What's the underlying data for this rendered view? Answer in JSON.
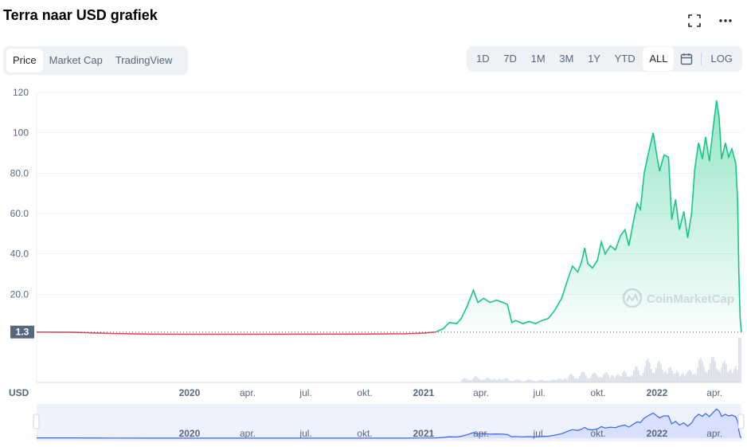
{
  "header": {
    "title": "Terra naar USD grafiek"
  },
  "icons": {
    "fullscreen": "fullscreen-icon",
    "more": "more-horizontal-icon",
    "calendar": "calendar-icon"
  },
  "type_tabs": [
    {
      "label": "Price",
      "active": true
    },
    {
      "label": "Market Cap",
      "active": false
    },
    {
      "label": "TradingView",
      "active": false
    }
  ],
  "range_tabs": [
    {
      "label": "1D",
      "active": false
    },
    {
      "label": "7D",
      "active": false
    },
    {
      "label": "1M",
      "active": false
    },
    {
      "label": "3M",
      "active": false
    },
    {
      "label": "1Y",
      "active": false
    },
    {
      "label": "YTD",
      "active": false
    },
    {
      "label": "ALL",
      "active": true
    }
  ],
  "log_label": "LOG",
  "currency_label": "USD",
  "watermark": "CoinMarketCap",
  "colors": {
    "up": "#16c784",
    "down": "#ea3943",
    "volume": "#cfd6e4",
    "nav_line": "#3861fb"
  },
  "chart_data": {
    "type": "area",
    "y_ticks": [
      "120",
      "100",
      "80.0",
      "60.0",
      "40.0",
      "20.0"
    ],
    "ylim": [
      0,
      120
    ],
    "current_price": 1.3,
    "current_price_label": "1.3",
    "x_ticks": [
      "2020",
      "apr.",
      "jul.",
      "okt.",
      "2021",
      "apr.",
      "jul.",
      "okt.",
      "2022",
      "apr."
    ],
    "x_tick_dates": [
      "2020-01-01",
      "2020-04-01",
      "2020-07-01",
      "2020-10-01",
      "2021-01-01",
      "2021-04-01",
      "2021-07-01",
      "2021-10-01",
      "2022-01-01",
      "2022-04-01"
    ],
    "x_range": [
      "2019-05-07",
      "2022-05-13"
    ],
    "grid": true,
    "series": [
      {
        "points": [
          [
            "2019-05-07",
            1.3
          ],
          [
            "2019-07-01",
            1.2
          ],
          [
            "2019-09-01",
            0.6
          ],
          [
            "2019-11-01",
            0.25
          ],
          [
            "2020-01-01",
            0.2
          ],
          [
            "2020-04-01",
            0.2
          ],
          [
            "2020-07-01",
            0.25
          ],
          [
            "2020-10-01",
            0.3
          ],
          [
            "2020-12-01",
            0.45
          ],
          [
            "2021-01-01",
            0.8
          ],
          [
            "2021-01-20",
            1.3
          ],
          [
            "2021-02-01",
            3
          ],
          [
            "2021-02-10",
            6
          ],
          [
            "2021-02-22",
            5.5
          ],
          [
            "2021-03-01",
            8
          ],
          [
            "2021-03-10",
            14
          ],
          [
            "2021-03-20",
            22
          ],
          [
            "2021-03-27",
            16
          ],
          [
            "2021-04-05",
            18
          ],
          [
            "2021-04-15",
            16
          ],
          [
            "2021-04-25",
            17
          ],
          [
            "2021-05-05",
            16
          ],
          [
            "2021-05-12",
            15
          ],
          [
            "2021-05-19",
            6
          ],
          [
            "2021-05-25",
            7
          ],
          [
            "2021-06-05",
            5.5
          ],
          [
            "2021-06-15",
            6.5
          ],
          [
            "2021-06-25",
            5.5
          ],
          [
            "2021-07-05",
            7
          ],
          [
            "2021-07-15",
            8
          ],
          [
            "2021-07-25",
            12
          ],
          [
            "2021-08-05",
            18
          ],
          [
            "2021-08-15",
            28
          ],
          [
            "2021-08-22",
            34
          ],
          [
            "2021-08-30",
            31
          ],
          [
            "2021-09-05",
            36
          ],
          [
            "2021-09-10",
            43
          ],
          [
            "2021-09-15",
            35
          ],
          [
            "2021-09-22",
            33
          ],
          [
            "2021-09-30",
            37
          ],
          [
            "2021-10-06",
            46
          ],
          [
            "2021-10-12",
            40
          ],
          [
            "2021-10-20",
            44
          ],
          [
            "2021-10-28",
            42
          ],
          [
            "2021-11-05",
            49
          ],
          [
            "2021-11-12",
            52
          ],
          [
            "2021-11-18",
            44
          ],
          [
            "2021-11-25",
            56
          ],
          [
            "2021-12-01",
            65
          ],
          [
            "2021-12-06",
            62
          ],
          [
            "2021-12-12",
            80
          ],
          [
            "2021-12-20",
            92
          ],
          [
            "2021-12-26",
            100
          ],
          [
            "2021-12-31",
            90
          ],
          [
            "2022-01-05",
            81
          ],
          [
            "2022-01-12",
            89
          ],
          [
            "2022-01-19",
            88
          ],
          [
            "2022-01-24",
            57
          ],
          [
            "2022-01-30",
            67
          ],
          [
            "2022-02-05",
            52
          ],
          [
            "2022-02-12",
            61
          ],
          [
            "2022-02-18",
            48
          ],
          [
            "2022-02-24",
            60
          ],
          [
            "2022-03-01",
            82
          ],
          [
            "2022-03-07",
            95
          ],
          [
            "2022-03-13",
            87
          ],
          [
            "2022-03-18",
            98
          ],
          [
            "2022-03-24",
            86
          ],
          [
            "2022-03-30",
            103
          ],
          [
            "2022-04-04",
            116
          ],
          [
            "2022-04-08",
            108
          ],
          [
            "2022-04-12",
            87
          ],
          [
            "2022-04-18",
            95
          ],
          [
            "2022-04-23",
            88
          ],
          [
            "2022-04-28",
            92
          ],
          [
            "2022-05-04",
            85
          ],
          [
            "2022-05-07",
            67
          ],
          [
            "2022-05-09",
            30
          ],
          [
            "2022-05-11",
            8
          ],
          [
            "2022-05-13",
            1.3
          ]
        ]
      }
    ]
  }
}
